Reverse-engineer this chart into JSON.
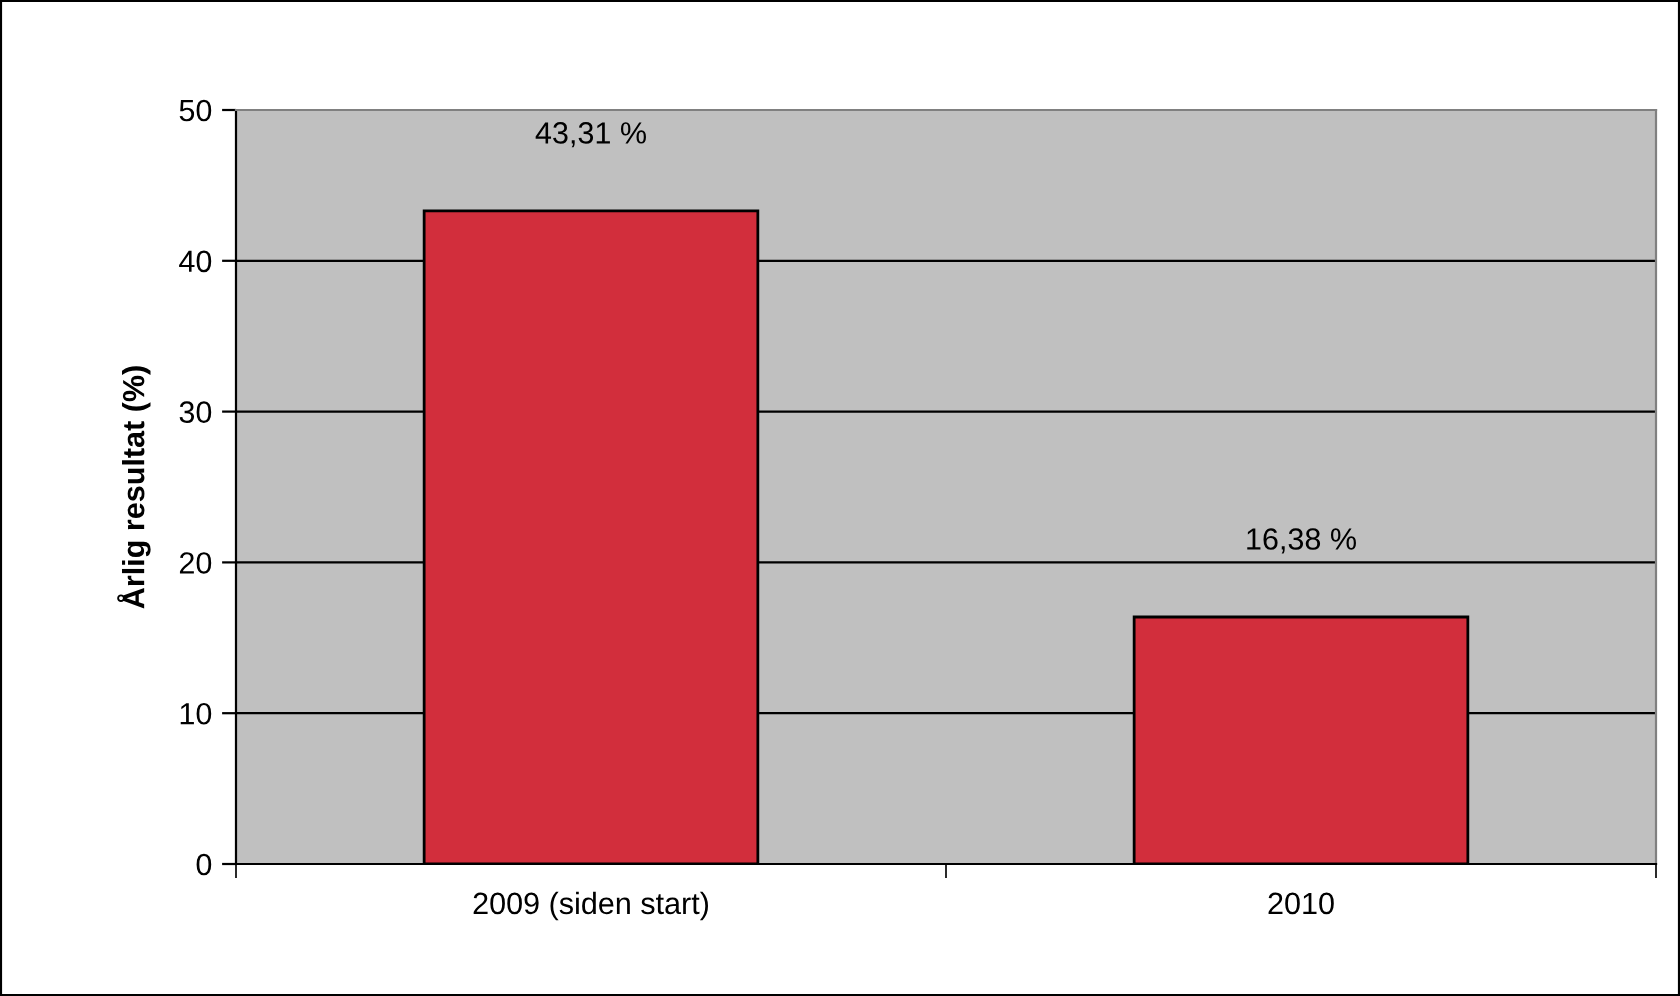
{
  "chart_data": {
    "type": "bar",
    "ylabel": "Årlig resultat (%)",
    "categories": [
      "2009 (siden start)",
      "2010"
    ],
    "values": [
      43.31,
      16.38
    ],
    "value_labels": [
      "43,31 %",
      "16,38 %"
    ],
    "color": "#d22e3c",
    "ylim": [
      0,
      50
    ],
    "yticks": [
      0,
      10,
      20,
      30,
      40,
      50
    ],
    "grid": "y"
  }
}
